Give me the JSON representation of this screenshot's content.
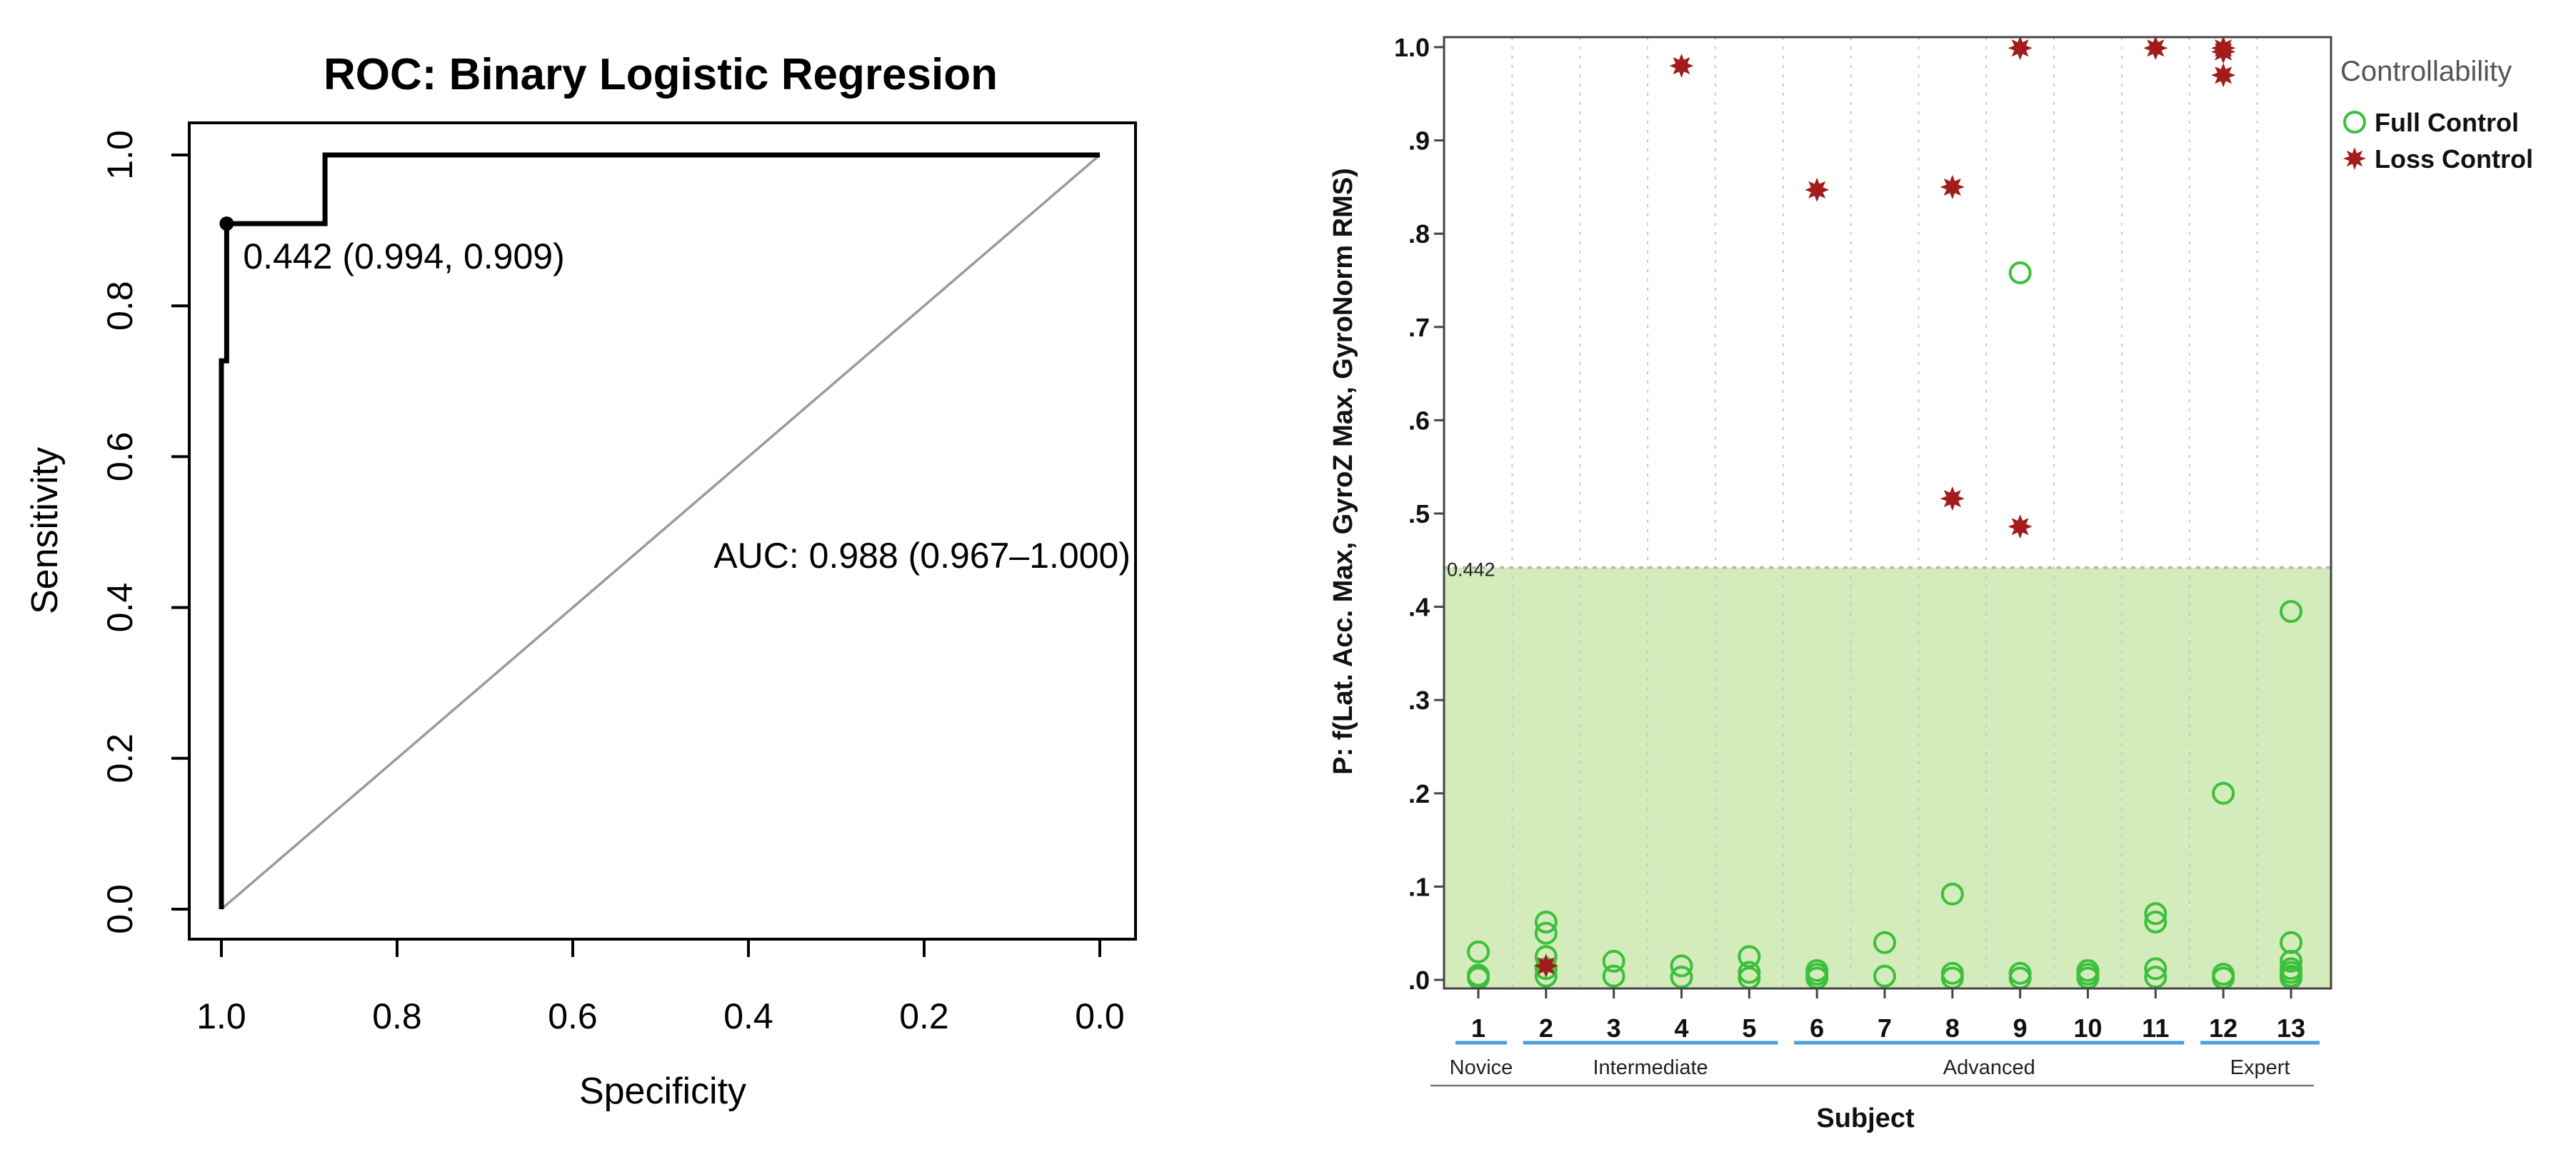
{
  "chart_data": [
    {
      "type": "line",
      "title": "ROC: Binary Logistic Regresion",
      "xlabel": "Specificity",
      "ylabel": "Sensitivity",
      "xlim": [
        1.0,
        0.0
      ],
      "ylim": [
        0.0,
        1.0
      ],
      "x_ticks": [
        "1.0",
        "0.8",
        "0.6",
        "0.4",
        "0.2",
        "0.0"
      ],
      "y_ticks": [
        "0.0",
        "0.2",
        "0.4",
        "0.6",
        "0.8",
        "1.0"
      ],
      "series": [
        {
          "name": "ROC curve",
          "points": [
            {
              "specificity": 1.0,
              "sensitivity": 0.0
            },
            {
              "specificity": 1.0,
              "sensitivity": 0.727
            },
            {
              "specificity": 0.994,
              "sensitivity": 0.727
            },
            {
              "specificity": 0.994,
              "sensitivity": 0.909
            },
            {
              "specificity": 0.882,
              "sensitivity": 0.909
            },
            {
              "specificity": 0.882,
              "sensitivity": 1.0
            },
            {
              "specificity": 0.0,
              "sensitivity": 1.0
            }
          ]
        },
        {
          "name": "Chance diagonal",
          "points": [
            {
              "specificity": 1.0,
              "sensitivity": 0.0
            },
            {
              "specificity": 0.0,
              "sensitivity": 1.0
            }
          ]
        }
      ],
      "optimal_point": {
        "specificity": 0.994,
        "sensitivity": 0.909,
        "label": "0.442 (0.994, 0.909)"
      },
      "auc_label": "AUC: 0.988 (0.967–1.000)",
      "grid": false
    },
    {
      "type": "scatter",
      "ylabel": "P:   f(Lat. Acc. Max, GyroZ Max, GyroNorm RMS)",
      "xlabel": "Subject",
      "ylim": [
        0.0,
        1.0
      ],
      "y_ticks": [
        ".0",
        ".1",
        ".2",
        ".3",
        ".4",
        ".5",
        ".6",
        ".7",
        ".8",
        ".9",
        "1.0"
      ],
      "categories": [
        "1",
        "2",
        "3",
        "4",
        "5",
        "6",
        "7",
        "8",
        "9",
        "10",
        "11",
        "12",
        "13"
      ],
      "threshold": {
        "value": 0.442,
        "label": "0.442",
        "shade_color": "#d4ebbb",
        "line_color": "#bbbbbb"
      },
      "groups": [
        {
          "name": "Novice",
          "first": 1,
          "last": 1
        },
        {
          "name": "Intermediate",
          "first": 2,
          "last": 5
        },
        {
          "name": "Advanced",
          "first": 6,
          "last": 11
        },
        {
          "name": "Expert",
          "first": 12,
          "last": 13
        }
      ],
      "legend_title": "Controllability",
      "series": [
        {
          "name": "Full Control",
          "marker": "open-circle",
          "color": "#3cc03c",
          "points": [
            [
              1,
              0.03
            ],
            [
              1,
              0.005
            ],
            [
              1,
              0.002
            ],
            [
              2,
              0.062
            ],
            [
              2,
              0.05
            ],
            [
              2,
              0.025
            ],
            [
              2,
              0.012
            ],
            [
              2,
              0.004
            ],
            [
              3,
              0.02
            ],
            [
              3,
              0.004
            ],
            [
              4,
              0.015
            ],
            [
              4,
              0.003
            ],
            [
              5,
              0.025
            ],
            [
              5,
              0.008
            ],
            [
              5,
              0.002
            ],
            [
              6,
              0.01
            ],
            [
              6,
              0.006
            ],
            [
              6,
              0.002
            ],
            [
              7,
              0.04
            ],
            [
              7,
              0.004
            ],
            [
              8,
              0.092
            ],
            [
              8,
              0.007
            ],
            [
              8,
              0.002
            ],
            [
              9,
              0.758
            ],
            [
              9,
              0.007
            ],
            [
              9,
              0.002
            ],
            [
              10,
              0.01
            ],
            [
              10,
              0.006
            ],
            [
              10,
              0.002
            ],
            [
              11,
              0.071
            ],
            [
              11,
              0.062
            ],
            [
              11,
              0.012
            ],
            [
              11,
              0.003
            ],
            [
              12,
              0.2
            ],
            [
              12,
              0.006
            ],
            [
              12,
              0.002
            ],
            [
              13,
              0.395
            ],
            [
              13,
              0.04
            ],
            [
              13,
              0.02
            ],
            [
              13,
              0.012
            ],
            [
              13,
              0.008
            ],
            [
              13,
              0.004
            ],
            [
              13,
              0.002
            ]
          ]
        },
        {
          "name": "Loss Control",
          "marker": "star",
          "color": "#a31c1c",
          "points": [
            [
              2,
              0.015
            ],
            [
              4,
              0.98
            ],
            [
              6,
              0.847
            ],
            [
              8,
              0.85
            ],
            [
              8,
              0.516
            ],
            [
              9,
              0.999
            ],
            [
              9,
              0.486
            ],
            [
              11,
              0.999
            ],
            [
              12,
              0.999
            ],
            [
              12,
              0.995
            ],
            [
              12,
              0.97
            ]
          ]
        }
      ],
      "grid": "dotted vertical"
    }
  ]
}
